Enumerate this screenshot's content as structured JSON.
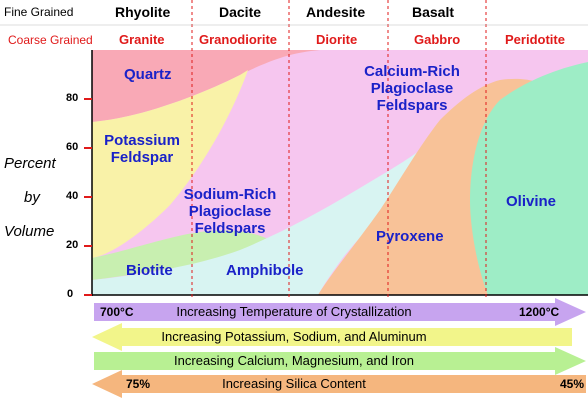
{
  "header": {
    "fine_label": "Fine Grained",
    "coarse_label": "Coarse Grained",
    "fine_rocks": [
      "Rhyolite",
      "Dacite",
      "Andesite",
      "Basalt"
    ],
    "coarse_rocks": [
      "Granite",
      "Granodiorite",
      "Diorite",
      "Gabbro",
      "Peridotite"
    ]
  },
  "y_axis": {
    "label_lines": [
      "Percent",
      "by",
      "Volume"
    ],
    "ticks": [
      "0",
      "20",
      "40",
      "60",
      "80"
    ]
  },
  "minerals": {
    "quartz": "Quartz",
    "potassium": [
      "Potassium",
      "Feldspar"
    ],
    "sodium": [
      "Sodium-Rich",
      "Plagioclase",
      "Feldspars"
    ],
    "calcium": [
      "Calcium-Rich",
      "Plagioclase",
      "Feldspars"
    ],
    "biotite": "Biotite",
    "amphibole": "Amphibole",
    "pyroxene": "Pyroxene",
    "olivine": "Olivine"
  },
  "arrows": [
    {
      "text": "Increasing Temperature of Crystallization",
      "left": "700°C",
      "right": "1200°C",
      "direction": "right",
      "color": "#c7a4ef"
    },
    {
      "text": "Increasing Potassium, Sodium, and Aluminum",
      "left": "",
      "right": "",
      "direction": "left",
      "color": "#f2f58a"
    },
    {
      "text": "Increasing Calcium, Magnesium, and Iron",
      "left": "",
      "right": "",
      "direction": "right",
      "color": "#b8f093"
    },
    {
      "text": "Increasing Silica Content",
      "left": "75%",
      "right": "45%",
      "direction": "left",
      "color": "#f5b67e"
    }
  ],
  "colors": {
    "quartz": "#f9a9b6",
    "potassium": "#f9f2a8",
    "plagioclase": "#f6c6ef",
    "biotite": "#c8efb0",
    "amphibole": "#d8f4f2",
    "pyroxene": "#f8c298",
    "olivine": "#9eedc6",
    "divider": "#e01a1a"
  }
}
